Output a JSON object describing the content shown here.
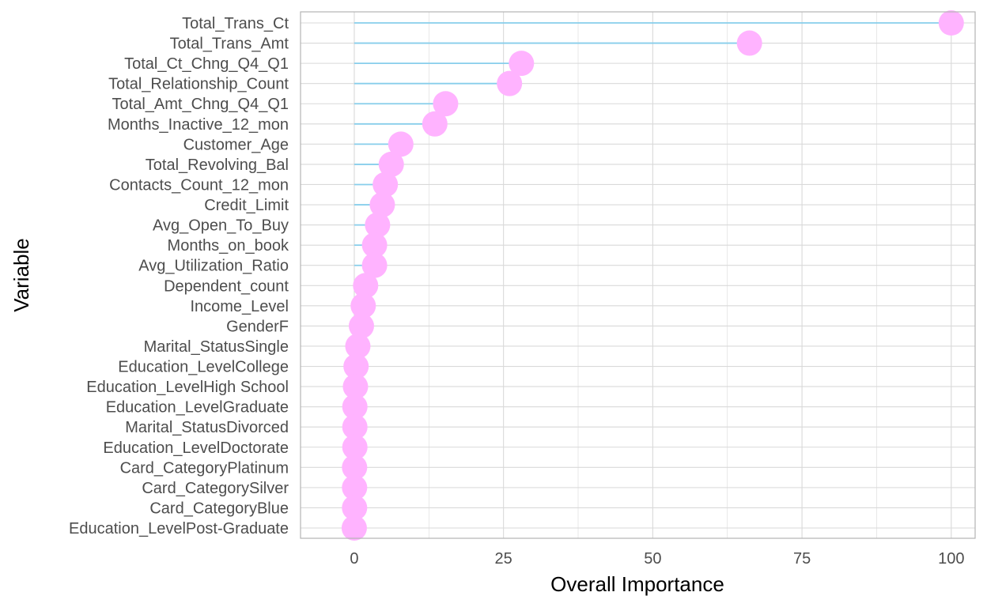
{
  "chart_data": {
    "type": "lollipop",
    "xlabel": "Overall Importance",
    "ylabel": "Variable",
    "xlim": [
      -9,
      104
    ],
    "x_ticks": [
      0,
      25,
      50,
      75,
      100
    ],
    "x_tick_labels": [
      "0",
      "25",
      "50",
      "75",
      "100"
    ],
    "grid": true,
    "legend": "none",
    "colors": {
      "segment": "#87ceeb",
      "point": "#ffb3ff",
      "grid": "#d9d9d9",
      "panel_border": "#b3b3b3"
    },
    "categories": [
      "Total_Trans_Ct",
      "Total_Trans_Amt",
      "Total_Ct_Chng_Q4_Q1",
      "Total_Relationship_Count",
      "Total_Amt_Chng_Q4_Q1",
      "Months_Inactive_12_mon",
      "Customer_Age",
      "Total_Revolving_Bal",
      "Contacts_Count_12_mon",
      "Credit_Limit",
      "Avg_Open_To_Buy",
      "Months_on_book",
      "Avg_Utilization_Ratio",
      "Dependent_count",
      "Income_Level",
      "GenderF",
      "Marital_StatusSingle",
      "Education_LevelCollege",
      "Education_LevelHigh School",
      "Education_LevelGraduate",
      "Marital_StatusDivorced",
      "Education_LevelDoctorate",
      "Card_CategoryPlatinum",
      "Card_CategorySilver",
      "Card_CategoryBlue",
      "Education_LevelPost-Graduate"
    ],
    "values": [
      100,
      66.2,
      28.0,
      26.0,
      15.3,
      13.5,
      7.8,
      6.2,
      5.2,
      4.7,
      3.9,
      3.4,
      3.4,
      1.9,
      1.5,
      1.2,
      0.6,
      0.3,
      0.2,
      0.1,
      0.1,
      0.1,
      0.05,
      0.05,
      0.05,
      0
    ]
  }
}
